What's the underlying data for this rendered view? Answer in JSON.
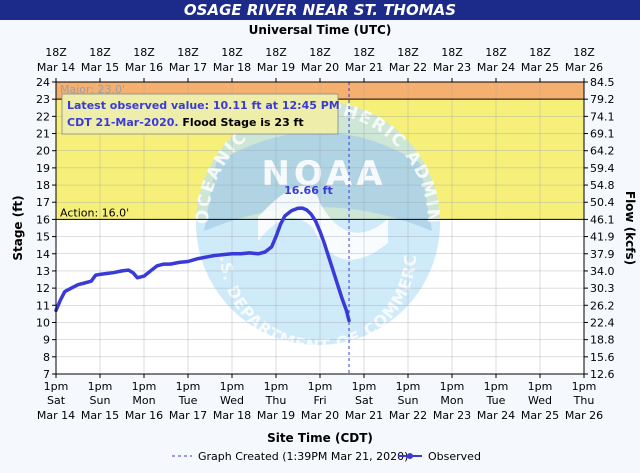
{
  "title": "OSAGE RIVER NEAR ST. THOMAS",
  "chart_data": {
    "type": "line",
    "top_axis_title": "Universal Time (UTC)",
    "bottom_axis_title": "Site Time (CDT)",
    "ylabel": "Stage (ft)",
    "y2label": "Flow (kcfs)",
    "ylim": [
      7,
      24
    ],
    "top_ticks": [
      {
        "t": "18Z",
        "d": "Mar 14"
      },
      {
        "t": "18Z",
        "d": "Mar 15"
      },
      {
        "t": "18Z",
        "d": "Mar 16"
      },
      {
        "t": "18Z",
        "d": "Mar 17"
      },
      {
        "t": "18Z",
        "d": "Mar 18"
      },
      {
        "t": "18Z",
        "d": "Mar 19"
      },
      {
        "t": "18Z",
        "d": "Mar 20"
      },
      {
        "t": "18Z",
        "d": "Mar 21"
      },
      {
        "t": "18Z",
        "d": "Mar 22"
      },
      {
        "t": "18Z",
        "d": "Mar 23"
      },
      {
        "t": "18Z",
        "d": "Mar 24"
      },
      {
        "t": "18Z",
        "d": "Mar 25"
      },
      {
        "t": "18Z",
        "d": "Mar 26"
      }
    ],
    "bottom_ticks": [
      {
        "t": "1pm",
        "w": "Sat",
        "d": "Mar 14"
      },
      {
        "t": "1pm",
        "w": "Sun",
        "d": "Mar 15"
      },
      {
        "t": "1pm",
        "w": "Mon",
        "d": "Mar 16"
      },
      {
        "t": "1pm",
        "w": "Tue",
        "d": "Mar 17"
      },
      {
        "t": "1pm",
        "w": "Wed",
        "d": "Mar 18"
      },
      {
        "t": "1pm",
        "w": "Thu",
        "d": "Mar 19"
      },
      {
        "t": "1pm",
        "w": "Fri",
        "d": "Mar 20"
      },
      {
        "t": "1pm",
        "w": "Sat",
        "d": "Mar 21"
      },
      {
        "t": "1pm",
        "w": "Sun",
        "d": "Mar 22"
      },
      {
        "t": "1pm",
        "w": "Mon",
        "d": "Mar 23"
      },
      {
        "t": "1pm",
        "w": "Tue",
        "d": "Mar 24"
      },
      {
        "t": "1pm",
        "w": "Wed",
        "d": "Mar 25"
      },
      {
        "t": "1pm",
        "w": "Thu",
        "d": "Mar 26"
      }
    ],
    "flow_ticks": [
      "84.5",
      "79.2",
      "74.1",
      "69.1",
      "64.2",
      "59.4",
      "54.8",
      "50.4",
      "46.1",
      "41.9",
      "37.9",
      "34.0",
      "30.3",
      "26.2",
      "22.4",
      "18.8",
      "15.6",
      "12.6"
    ],
    "bands": [
      {
        "name": "Major",
        "from": 23,
        "to": 24,
        "color": "#f5b070",
        "label": "Major: 23.0'"
      },
      {
        "name": "Flood",
        "from": 16,
        "to": 23,
        "color": "#f6f07a"
      },
      {
        "name": "Action",
        "from": 16,
        "to": 16,
        "label": "Action: 16.0'"
      }
    ],
    "series": [
      {
        "name": "Observed",
        "color": "#3a3ad8",
        "points": [
          [
            0.0,
            10.7
          ],
          [
            0.1,
            11.3
          ],
          [
            0.2,
            11.8
          ],
          [
            0.35,
            12.0
          ],
          [
            0.5,
            12.2
          ],
          [
            0.65,
            12.3
          ],
          [
            0.8,
            12.4
          ],
          [
            0.9,
            12.75
          ],
          [
            1.0,
            12.8
          ],
          [
            1.15,
            12.85
          ],
          [
            1.3,
            12.9
          ],
          [
            1.5,
            13.0
          ],
          [
            1.65,
            13.05
          ],
          [
            1.75,
            12.9
          ],
          [
            1.85,
            12.6
          ],
          [
            2.0,
            12.7
          ],
          [
            2.15,
            13.0
          ],
          [
            2.3,
            13.3
          ],
          [
            2.45,
            13.4
          ],
          [
            2.6,
            13.4
          ],
          [
            2.8,
            13.5
          ],
          [
            3.0,
            13.55
          ],
          [
            3.2,
            13.7
          ],
          [
            3.4,
            13.8
          ],
          [
            3.6,
            13.9
          ],
          [
            3.8,
            13.95
          ],
          [
            4.0,
            14.0
          ],
          [
            4.2,
            14.0
          ],
          [
            4.4,
            14.05
          ],
          [
            4.6,
            14.0
          ],
          [
            4.75,
            14.1
          ],
          [
            4.9,
            14.4
          ],
          [
            5.0,
            15.0
          ],
          [
            5.1,
            15.7
          ],
          [
            5.2,
            16.2
          ],
          [
            5.35,
            16.5
          ],
          [
            5.5,
            16.65
          ],
          [
            5.6,
            16.66
          ],
          [
            5.7,
            16.55
          ],
          [
            5.8,
            16.3
          ],
          [
            5.9,
            15.9
          ],
          [
            6.0,
            15.3
          ],
          [
            6.1,
            14.6
          ],
          [
            6.2,
            13.8
          ],
          [
            6.3,
            13.0
          ],
          [
            6.4,
            12.2
          ],
          [
            6.5,
            11.4
          ],
          [
            6.6,
            10.7
          ],
          [
            6.66,
            10.11
          ]
        ]
      }
    ],
    "peak_label": "16.66 ft",
    "annotation_line1": "Latest observed value: 10.11 ft at 12:45 PM",
    "annotation_line2a": "CDT 21-Mar-2020.",
    "annotation_line2b": "Flood Stage is 23 ft",
    "watermark_text": "NOAA",
    "watermark_ring_top": "ATMOSPHERIC ADMINISTRATION",
    "watermark_ring_left": "NATIONAL OCEANIC",
    "watermark_ring_bottom": "U.S. DEPARTMENT OF COMMERCE",
    "legend_created": "Graph Created (1:39PM Mar 21, 2020)",
    "legend_observed": "Observed"
  }
}
